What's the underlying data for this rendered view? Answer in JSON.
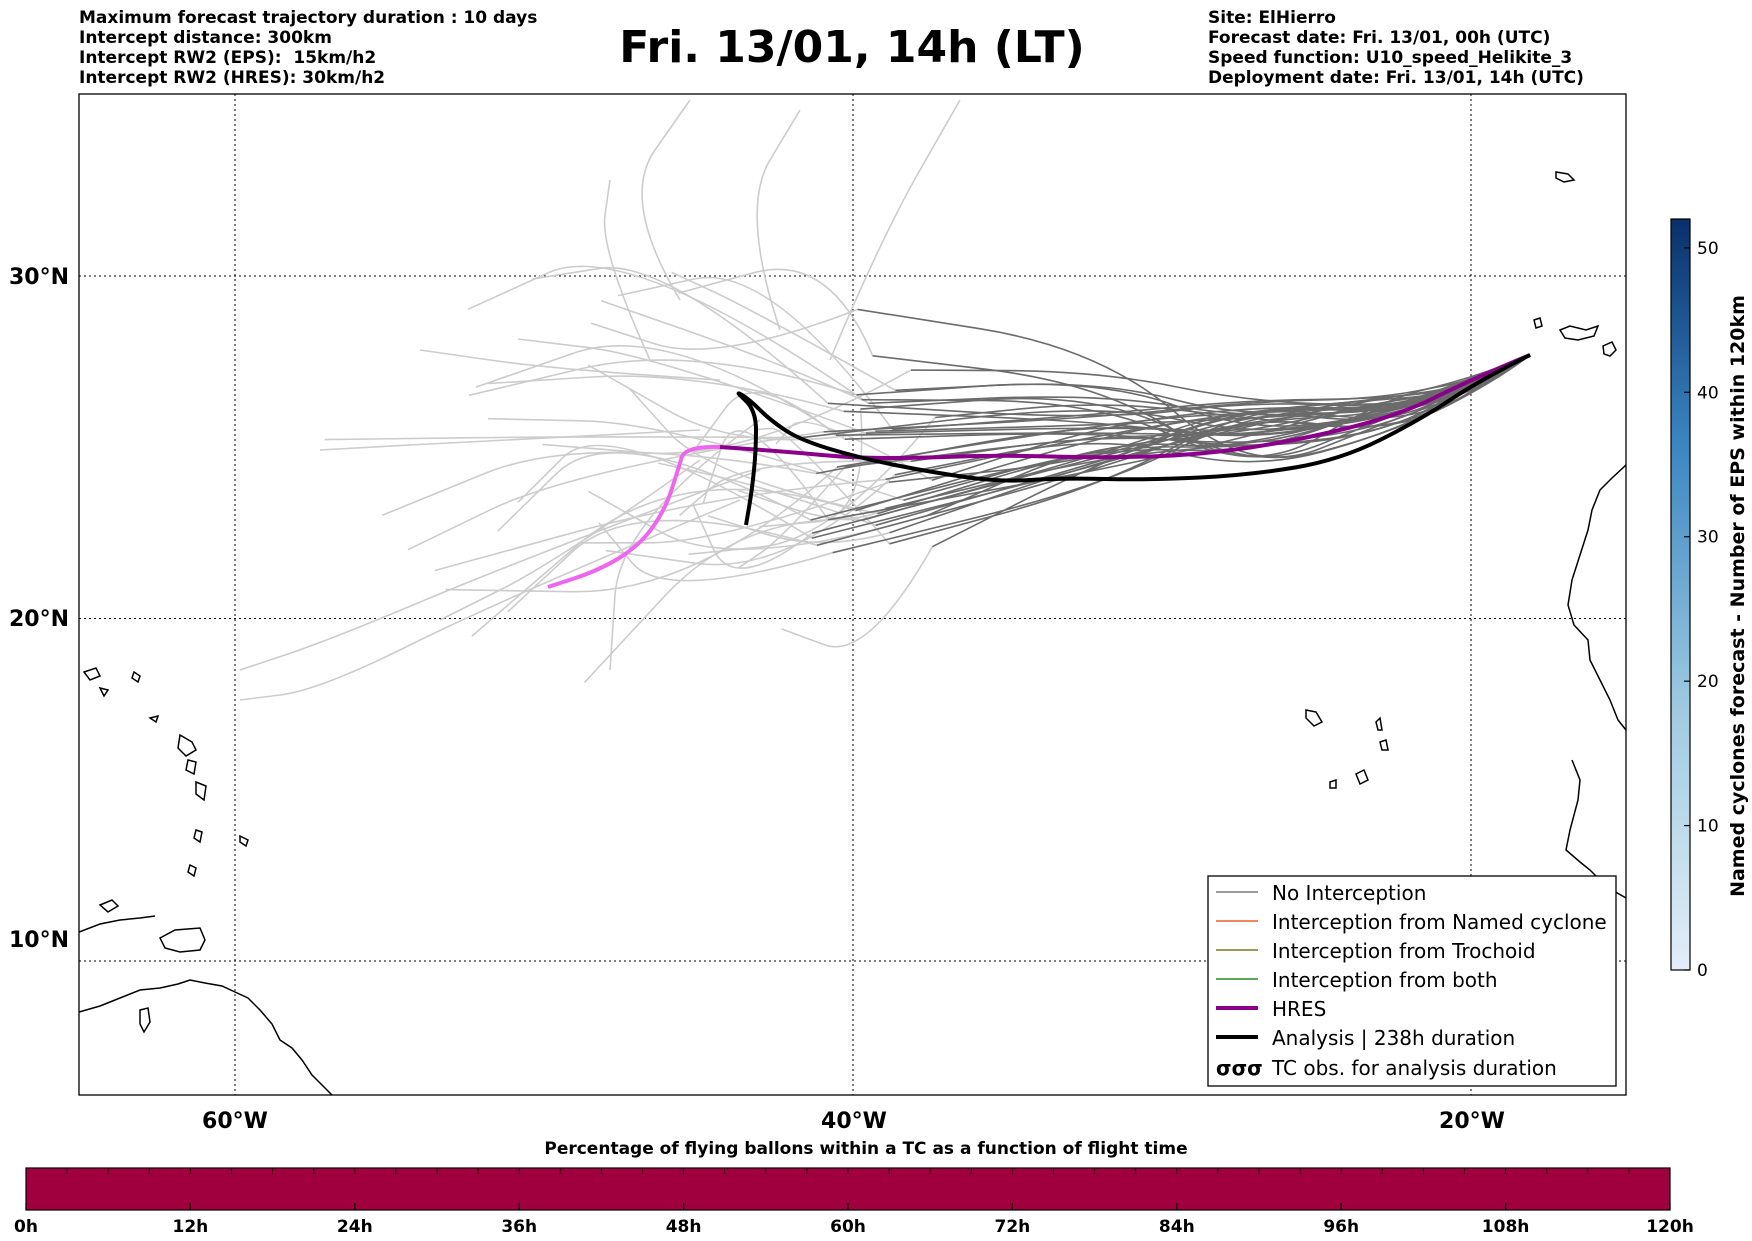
{
  "header": {
    "left_lines": [
      "Maximum forecast trajectory duration : 10 days",
      "Intercept distance: 300km",
      "Intercept RW2 (EPS):  15km/h2",
      "Intercept RW2 (HRES): 30km/h2"
    ],
    "title": "Fri. 13/01, 14h (LT)",
    "right_lines": [
      "Site: ElHierro",
      "Forecast date: Fri. 13/01, 00h (UTC)",
      "Speed function: U10_speed_Helikite_3",
      "Deployment date: Fri. 13/01, 14h (UTC)"
    ]
  },
  "map": {
    "lon_range": [
      -65,
      15
    ],
    "lat_range": [
      5,
      34.7
    ],
    "lat_labels": [
      "30°N",
      "20°N",
      "10°N"
    ],
    "lat_values": [
      30,
      20,
      10
    ],
    "lon_labels": [
      "60°W",
      "40°W",
      "20°W"
    ],
    "lon_values": [
      -60,
      -40,
      -20
    ],
    "grid": "dotted",
    "colors": {
      "eps_no_interception": "#6b6b6b",
      "eps_faded": "#cccccc",
      "named_cyclone": "#e8602c",
      "trochoid": "#7a7a1e",
      "both": "#2a8a2a",
      "hres": "#8b008b",
      "hres_tail": "#ee66ee",
      "analysis": "#000000",
      "coast": "#000000"
    }
  },
  "legend": {
    "items": [
      {
        "label": "No Interception",
        "style": "thin-gray"
      },
      {
        "label": "Interception from Named cyclone",
        "style": "thin-orange"
      },
      {
        "label": "Interception from Trochoid",
        "style": "thin-olive"
      },
      {
        "label": "Interception from both",
        "style": "thin-green"
      },
      {
        "label": "HRES",
        "style": "thick-purple"
      },
      {
        "label": "Analysis | 238h duration",
        "style": "thick-black"
      },
      {
        "label": "TC obs. for analysis duration",
        "style": "tc-symbols"
      }
    ],
    "tc_symbol": "σσσ",
    "placement": "lower-right"
  },
  "colorbar_right": {
    "title": "Named cyclones forecast - Number of EPS within 120km",
    "ticks": [
      "0",
      "10",
      "20",
      "30",
      "40",
      "50"
    ],
    "tick_values": [
      0,
      10,
      20,
      30,
      40,
      50
    ],
    "range": [
      0,
      52
    ],
    "color_low": "#e3eef9",
    "color_high": "#08306b"
  },
  "colorbar_bottom": {
    "title": "Percentage of flying ballons within a TC as a function of flight time",
    "ticks": [
      "0h",
      "12h",
      "24h",
      "36h",
      "48h",
      "60h",
      "72h",
      "84h",
      "96h",
      "108h",
      "120h"
    ],
    "fill_color": "#a0003e"
  }
}
